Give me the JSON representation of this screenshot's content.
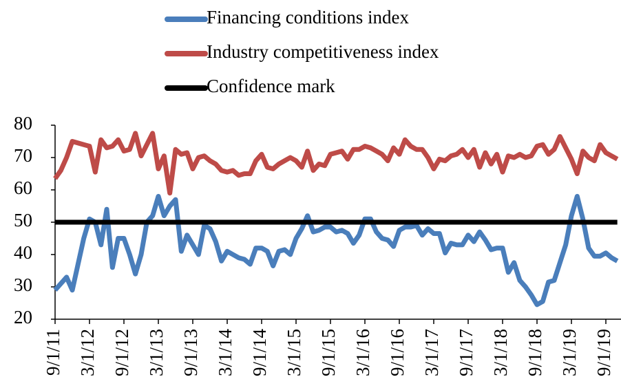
{
  "chart_data": {
    "type": "line",
    "categories": [
      "9/1/11",
      null,
      null,
      null,
      null,
      null,
      "3/1/12",
      null,
      null,
      null,
      null,
      null,
      "9/1/12",
      null,
      null,
      null,
      null,
      null,
      "3/1/13",
      null,
      null,
      null,
      null,
      null,
      "9/1/13",
      null,
      null,
      null,
      null,
      null,
      "3/1/14",
      null,
      null,
      null,
      null,
      null,
      "9/1/14",
      null,
      null,
      null,
      null,
      null,
      "3/1/15",
      null,
      null,
      null,
      null,
      null,
      "9/1/15",
      null,
      null,
      null,
      null,
      null,
      "3/1/16",
      null,
      null,
      null,
      null,
      null,
      "9/1/16",
      null,
      null,
      null,
      null,
      null,
      "3/1/17",
      null,
      null,
      null,
      null,
      null,
      "9/1/17",
      null,
      null,
      null,
      null,
      null,
      "3/1/18",
      null,
      null,
      null,
      null,
      null,
      "9/1/18",
      null,
      null,
      null,
      null,
      null,
      "3/1/19",
      null,
      null,
      null,
      null,
      null,
      "9/1/19",
      null,
      null
    ],
    "series": [
      {
        "name": "Financing conditions index",
        "color": "#4a7ebb",
        "values": [
          29,
          31,
          33,
          29,
          37,
          45,
          51,
          50,
          43,
          54,
          36,
          45,
          45,
          40,
          34,
          40,
          50,
          52,
          58,
          52,
          55,
          57,
          41,
          46,
          43,
          40,
          49,
          48,
          44,
          38,
          41,
          40,
          39,
          38.5,
          37,
          42,
          42,
          41,
          36.5,
          41,
          41.5,
          40,
          45,
          48,
          52,
          47,
          47.5,
          48.5,
          48.5,
          47,
          47.5,
          46.5,
          43.5,
          46,
          51,
          51,
          47,
          45,
          44.5,
          42.5,
          47.5,
          48.5,
          48.5,
          49,
          46,
          48,
          46.5,
          46.5,
          40.5,
          43.5,
          43,
          43,
          46,
          44,
          47,
          44.5,
          41.5,
          42,
          42,
          34.5,
          37.5,
          32,
          30,
          27.5,
          24.5,
          25.5,
          31.5,
          32,
          37.5,
          43,
          52,
          58,
          51,
          42,
          39.5,
          39.5,
          40.5,
          39,
          38
        ]
      },
      {
        "name": "Industry competitiveness index",
        "color": "#be4b48",
        "values": [
          63.5,
          66,
          70,
          75,
          74.5,
          74,
          73.5,
          65.5,
          75.5,
          73,
          73.5,
          75.5,
          72,
          72.5,
          77.5,
          70.5,
          74,
          77.5,
          66.5,
          70.5,
          59,
          72.5,
          71,
          71.5,
          66.5,
          70,
          70.5,
          69,
          68,
          66,
          65.5,
          66,
          64.5,
          65,
          65,
          69,
          71,
          67,
          66.5,
          68,
          69,
          70,
          69,
          67,
          72,
          66,
          68,
          67.5,
          71,
          71.5,
          72,
          69.5,
          72.5,
          72.5,
          73.5,
          73,
          72,
          71,
          69,
          73,
          71,
          75.5,
          73.5,
          72.5,
          72.5,
          70,
          66.5,
          69.5,
          69,
          70.5,
          71,
          72.5,
          70,
          72.5,
          67,
          71.5,
          68,
          71,
          65.5,
          70.5,
          70,
          71,
          70,
          70.5,
          73.5,
          74,
          71,
          72.5,
          76.5,
          73,
          69.5,
          65,
          72,
          70,
          69,
          74,
          71.5,
          70.5,
          69.5
        ]
      },
      {
        "name": "Confidence mark",
        "color": "#000000",
        "values": [
          50,
          50,
          50,
          50,
          50,
          50,
          50,
          50,
          50,
          50,
          50,
          50,
          50,
          50,
          50,
          50,
          50,
          50,
          50,
          50,
          50,
          50,
          50,
          50,
          50,
          50,
          50,
          50,
          50,
          50,
          50,
          50,
          50,
          50,
          50,
          50,
          50,
          50,
          50,
          50,
          50,
          50,
          50,
          50,
          50,
          50,
          50,
          50,
          50,
          50,
          50,
          50,
          50,
          50,
          50,
          50,
          50,
          50,
          50,
          50,
          50,
          50,
          50,
          50,
          50,
          50,
          50,
          50,
          50,
          50,
          50,
          50,
          50,
          50,
          50,
          50,
          50,
          50,
          50,
          50,
          50,
          50,
          50,
          50,
          50,
          50,
          50,
          50,
          50,
          50,
          50,
          50,
          50,
          50,
          50,
          50,
          50,
          50,
          50
        ]
      }
    ],
    "ylim": [
      20,
      80
    ],
    "yticks": [
      20,
      30,
      40,
      50,
      60,
      70,
      80
    ],
    "legend": "top"
  }
}
